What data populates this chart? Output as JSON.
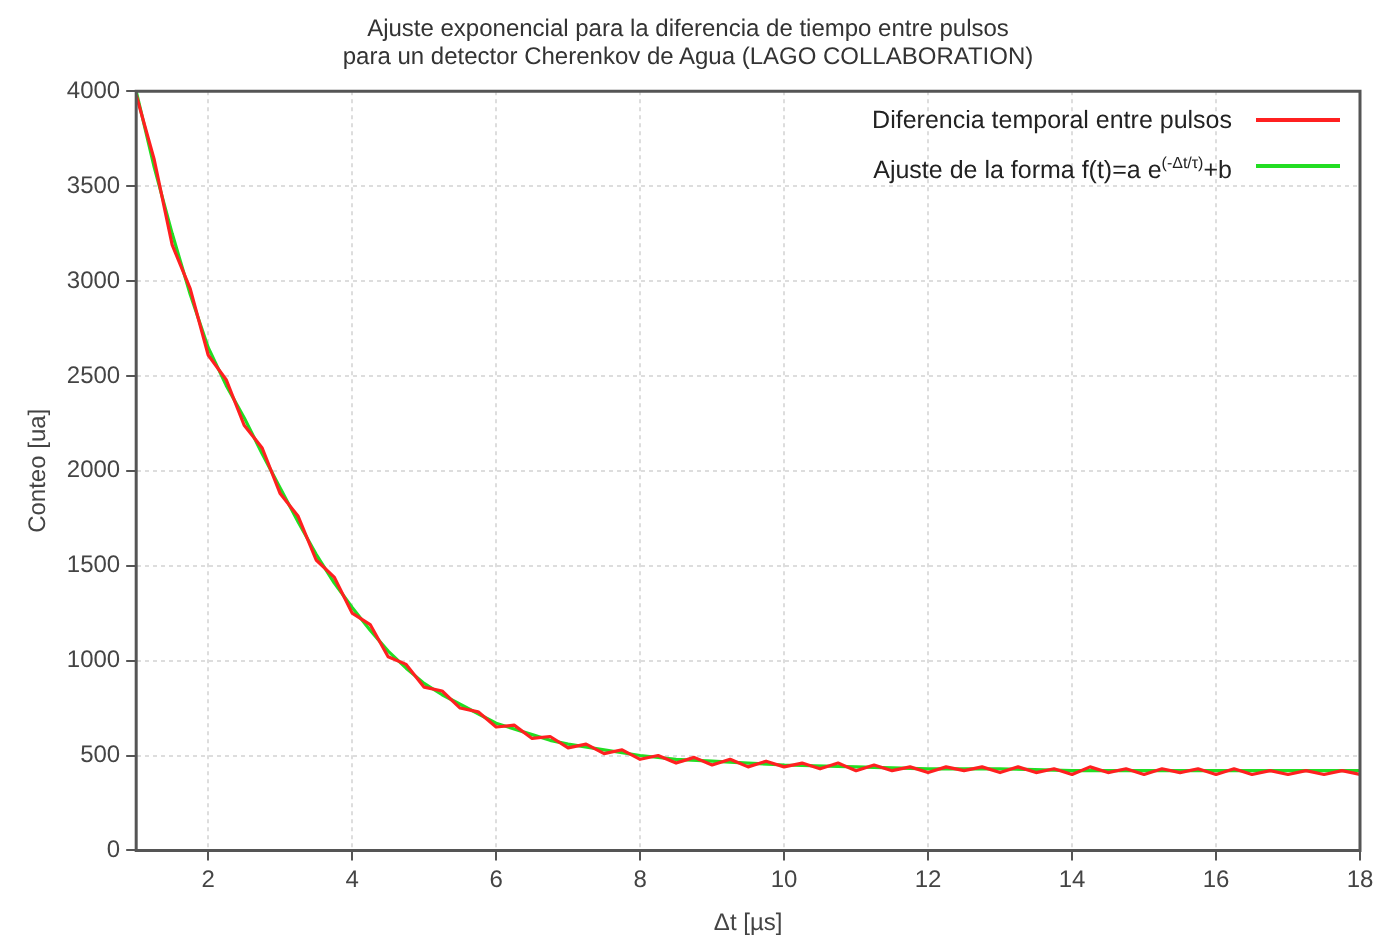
{
  "chart_data": {
    "type": "line",
    "title": "Ajuste exponencial para la diferencia de tiempo entre pulsos\npara un detector Cherenkov de Agua (LAGO COLLABORATION)",
    "xlabel": "Δt [µs]",
    "ylabel": "Conteo [ua]",
    "xlim": [
      1,
      18
    ],
    "xticks": [
      2,
      4,
      6,
      8,
      10,
      12,
      14,
      16,
      18
    ],
    "ylim": [
      0,
      4000
    ],
    "yticks": [
      0,
      500,
      1000,
      1500,
      2000,
      2500,
      3000,
      3500,
      4000
    ],
    "grid": true,
    "legend": "top right",
    "marker": "none",
    "line_style": "solid",
    "series": [
      {
        "name": "Diferencia temporal entre pulsos",
        "color": "#ff2020",
        "x": [
          1,
          1.25,
          1.5,
          1.75,
          2,
          2.25,
          2.5,
          2.75,
          3,
          3.25,
          3.5,
          3.75,
          4,
          4.25,
          4.5,
          4.75,
          5,
          5.25,
          5.5,
          5.75,
          6,
          6.25,
          6.5,
          6.75,
          7,
          7.25,
          7.5,
          7.75,
          8,
          8.25,
          8.5,
          8.75,
          9,
          9.25,
          9.5,
          9.75,
          10,
          10.25,
          10.5,
          10.75,
          11,
          11.25,
          11.5,
          11.75,
          12,
          12.25,
          12.5,
          12.75,
          13,
          13.25,
          13.5,
          13.75,
          14,
          14.25,
          14.5,
          14.75,
          15,
          15.25,
          15.5,
          15.75,
          16,
          16.25,
          16.5,
          16.75,
          17,
          17.25,
          17.5,
          17.75,
          18
        ],
        "values": [
          3980,
          3640,
          3190,
          2960,
          2610,
          2480,
          2240,
          2120,
          1880,
          1760,
          1530,
          1440,
          1250,
          1190,
          1020,
          980,
          860,
          840,
          750,
          730,
          650,
          660,
          590,
          600,
          540,
          560,
          510,
          530,
          480,
          500,
          460,
          490,
          450,
          480,
          440,
          470,
          440,
          460,
          430,
          460,
          420,
          450,
          420,
          440,
          410,
          440,
          420,
          440,
          410,
          440,
          410,
          430,
          400,
          440,
          410,
          430,
          400,
          430,
          410,
          430,
          400,
          430,
          400,
          420,
          400,
          420,
          400,
          420,
          400
        ]
      },
      {
        "name": "Ajuste de la forma f(t)=a e$^{(-Δt/τ)}$+b",
        "color": "#22dd22",
        "x": [
          1,
          1.25,
          1.5,
          1.75,
          2,
          2.25,
          2.5,
          2.75,
          3,
          3.25,
          3.5,
          3.75,
          4,
          4.25,
          4.5,
          4.75,
          5,
          5.25,
          5.5,
          5.75,
          6,
          6.25,
          6.5,
          6.75,
          7,
          7.5,
          8,
          8.5,
          9,
          9.5,
          10,
          11,
          12,
          13,
          14,
          15,
          16,
          17,
          18
        ],
        "values": [
          4000,
          3600,
          3250,
          2930,
          2650,
          2450,
          2280,
          2090,
          1910,
          1730,
          1560,
          1410,
          1280,
          1160,
          1050,
          960,
          880,
          820,
          770,
          720,
          670,
          640,
          610,
          580,
          560,
          530,
          500,
          480,
          470,
          460,
          450,
          440,
          430,
          430,
          420,
          420,
          420,
          420,
          420
        ]
      }
    ]
  }
}
